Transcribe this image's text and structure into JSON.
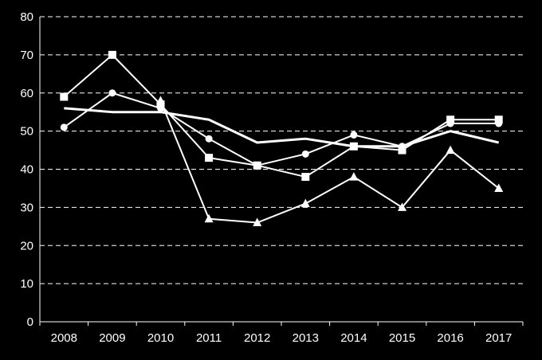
{
  "chart_data": {
    "type": "line",
    "title": "",
    "xlabel": "",
    "ylabel": "",
    "categories": [
      "2008",
      "2009",
      "2010",
      "2011",
      "2012",
      "2013",
      "2014",
      "2015",
      "2016",
      "2017"
    ],
    "ylim": [
      0,
      80
    ],
    "yticks": [
      "0",
      "10",
      "20",
      "30",
      "40",
      "50",
      "60",
      "70",
      "80"
    ],
    "grid": "horizontal dashed",
    "legend": "none",
    "colors": {
      "background": "#000000",
      "line": "#ffffff",
      "grid": "#ffffff",
      "axis": "#ffffff"
    },
    "series": [
      {
        "marker": "circle",
        "values": [
          51,
          60,
          56,
          48,
          41,
          44,
          49,
          46,
          52,
          52
        ]
      },
      {
        "marker": "square",
        "values": [
          59,
          70,
          57,
          43,
          41,
          38,
          46,
          45,
          53,
          53
        ]
      },
      {
        "marker": "triangle",
        "values": [
          null,
          null,
          58,
          27,
          26,
          31,
          38,
          30,
          45,
          35
        ]
      },
      {
        "marker": "none",
        "values": [
          56,
          55,
          55,
          53,
          47,
          48,
          46,
          46,
          50,
          47
        ]
      }
    ]
  }
}
